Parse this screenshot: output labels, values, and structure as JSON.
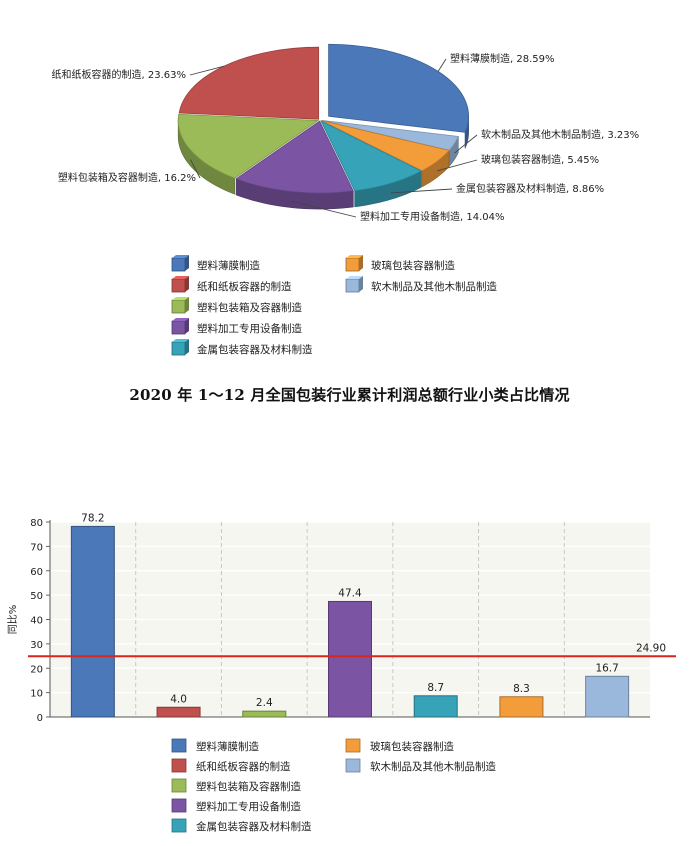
{
  "chart_data": [
    {
      "type": "pie",
      "series": [
        {
          "name": "塑料薄膜制造",
          "value": 28.59,
          "label": "塑料薄膜制造, 28.59%",
          "color": "#4a78b8"
        },
        {
          "name": "软木制品及其他木制品制造",
          "value": 3.23,
          "label": "软木制品及其他木制品制造, 3.23%",
          "color": "#9ab8dc"
        },
        {
          "name": "玻璃包装容器制造",
          "value": 5.45,
          "label": "玻璃包装容器制造, 5.45%",
          "color": "#f39c3a"
        },
        {
          "name": "金属包装容器及材料制造",
          "value": 8.86,
          "label": "金属包装容器及材料制造, 8.86%",
          "color": "#36a3b8"
        },
        {
          "name": "塑料加工专用设备制造",
          "value": 14.04,
          "label": "塑料加工专用设备制造, 14.04%",
          "color": "#7b55a3"
        },
        {
          "name": "塑料包装箱及容器制造",
          "value": 16.2,
          "label": "塑料包装箱及容器制造, 16.2%",
          "color": "#9bbb59"
        },
        {
          "name": "纸和纸板容器的制造",
          "value": 23.63,
          "label": "纸和纸板容器的制造, 23.63%",
          "color": "#c0504d"
        }
      ],
      "legend": {
        "placement": "bottom",
        "items": [
          "塑料薄膜制造",
          "纸和纸板容器的制造",
          "塑料包装箱及容器制造",
          "塑料加工专用设备制造",
          "金属包装容器及材料制造",
          "玻璃包装容器制造",
          "软木制品及其他木制品制造"
        ]
      }
    },
    {
      "type": "bar",
      "categories": [
        "塑料薄膜制造",
        "纸和纸板容器的制造",
        "塑料包装箱及容器制造",
        "塑料加工专用设备制造",
        "金属包装容器及材料制造",
        "玻璃包装容器制造",
        "软木制品及其他木制品制造"
      ],
      "values": [
        78.2,
        4.0,
        2.4,
        47.4,
        8.7,
        8.3,
        16.7
      ],
      "value_labels": [
        "78.2",
        "4.0",
        "2.4",
        "47.4",
        "8.7",
        "8.3",
        "16.7"
      ],
      "colors": [
        "#4a78b8",
        "#c0504d",
        "#9bbb59",
        "#7b55a3",
        "#36a3b8",
        "#f39c3a",
        "#9ab8dc"
      ],
      "ylabel": "同比%",
      "ylim": [
        0,
        80
      ],
      "yticks": [
        0,
        10,
        20,
        30,
        40,
        50,
        60,
        70,
        80
      ],
      "reference_line": {
        "value": 24.9,
        "label": "24.90",
        "color": "#d9261c"
      },
      "grid": true,
      "legend": {
        "placement": "bottom",
        "items": [
          "塑料薄膜制造",
          "纸和纸板容器的制造",
          "塑料包装箱及容器制造",
          "塑料加工专用设备制造",
          "金属包装容器及材料制造",
          "玻璃包装容器制造",
          "软木制品及其他木制品制造"
        ]
      }
    }
  ],
  "caption": "2020 年 1～12 月全国包装行业累计利润总额行业小类占比情况"
}
